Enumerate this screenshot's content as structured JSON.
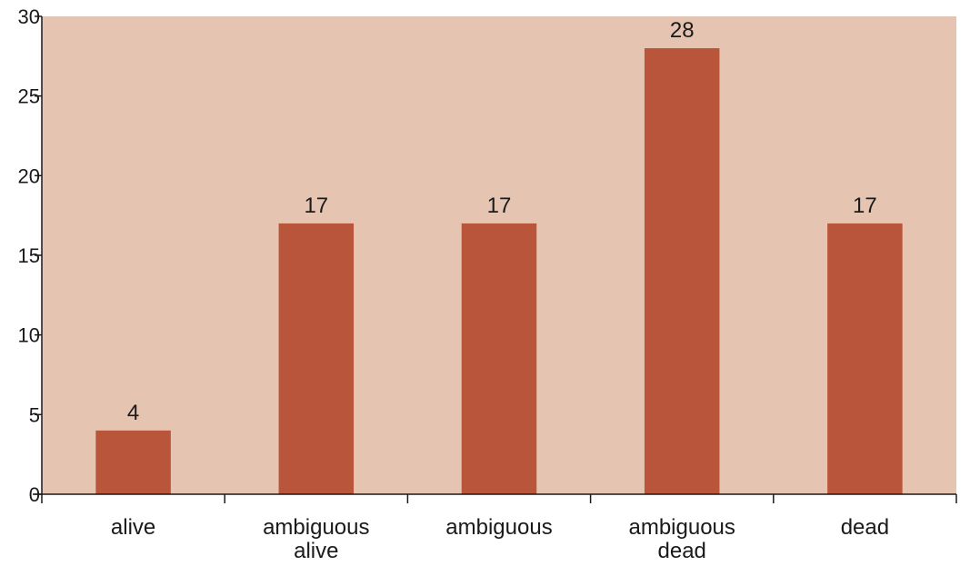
{
  "chart_data": {
    "type": "bar",
    "categories": [
      [
        "alive"
      ],
      [
        "ambiguous",
        "alive"
      ],
      [
        "ambiguous"
      ],
      [
        "ambiguous",
        "dead"
      ],
      [
        "dead"
      ]
    ],
    "values": [
      4,
      17,
      17,
      28,
      17
    ],
    "data_labels": [
      "4",
      "17",
      "17",
      "28",
      "17"
    ],
    "ylim": [
      0,
      30
    ],
    "yticks": [
      0,
      5,
      10,
      15,
      20,
      25,
      30
    ],
    "title": "",
    "xlabel": "",
    "ylabel": "",
    "grid": false,
    "legend": "none",
    "colors": {
      "bar": "#b9553a",
      "plot_background": "#e5c4b1",
      "axis": "#1a1a1a"
    }
  }
}
